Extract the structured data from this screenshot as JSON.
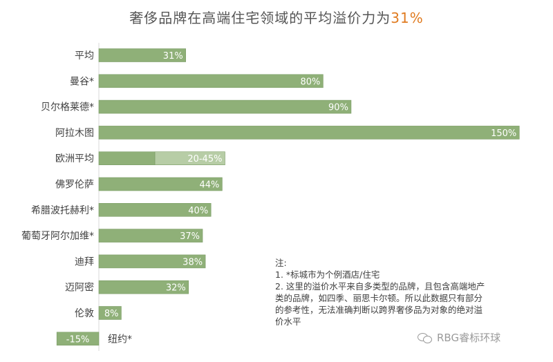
{
  "title": {
    "main": "奢侈品牌在高端住宅领域的平均溢价力为",
    "highlight": "31%"
  },
  "chart_data": {
    "type": "bar",
    "orientation": "horizontal",
    "title": "奢侈品牌在高端住宅领域的平均溢价力为31%",
    "unit": "%",
    "categories": [
      "平均",
      "曼谷*",
      "贝尔格莱德*",
      "阿拉木图",
      "欧洲平均",
      "佛罗伦萨",
      "希腊波托赫利*",
      "葡萄牙阿尔加维*",
      "迪拜",
      "迈阿密",
      "伦敦",
      "纽约*"
    ],
    "values": [
      31,
      80,
      90,
      150,
      45,
      44,
      40,
      37,
      38,
      32,
      8,
      -15
    ],
    "range_low": [
      null,
      null,
      null,
      null,
      20,
      null,
      null,
      null,
      null,
      null,
      null,
      null
    ],
    "labels": [
      "31%",
      "80%",
      "90%",
      "150%",
      "20-45%",
      "44%",
      "40%",
      "37%",
      "38%",
      "32%",
      "8%",
      "-15%"
    ],
    "xlim": [
      -15,
      150
    ],
    "colors": {
      "bar": "#8fb078",
      "bar_border": "#7a9c64",
      "range_extension": "#b7cda6",
      "label_text": "#ffffff",
      "title_accent": "#e07b20"
    },
    "grid": false,
    "legend": "none"
  },
  "notes": {
    "heading": "注:",
    "line1": "1. *标城市为个例酒店/住宅",
    "line2a": "2. 这里的溢价水平来自多类型的品牌，且包含高端地产",
    "line2b": "类的品牌，如四季、丽思卡尔顿。所以此数据只有部分",
    "line2c": "的参考性，无法准确判断以跨界奢侈品为对象的绝对溢",
    "line2d": "价水平"
  },
  "watermark": {
    "icon": "wechat-icon",
    "text": "RBG睿标环球"
  }
}
